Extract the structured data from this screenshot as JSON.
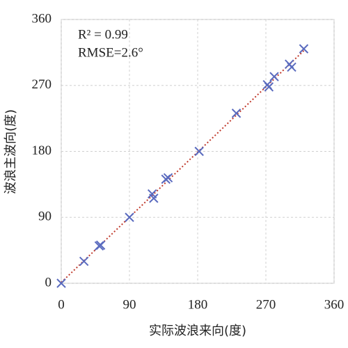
{
  "chart_data": {
    "type": "scatter",
    "x_label": "实际波浪来向(度)",
    "y_label": "波浪主波向(度)",
    "annotations": [
      "R² = 0.99",
      "RMSE=2.6°"
    ],
    "series": [
      {
        "color": "#5a6bbf",
        "x": [
          0,
          30,
          50,
          52,
          90,
          120,
          122,
          138,
          141,
          182,
          231,
          272,
          274,
          281,
          301,
          304,
          320
        ],
        "values": [
          0,
          30,
          51,
          52,
          90,
          122,
          116,
          142,
          144,
          180,
          232,
          271,
          268,
          282,
          299,
          295,
          320
        ]
      }
    ],
    "trendline": true,
    "trendline_color": "#c0392b",
    "xlim": [
      0,
      360
    ],
    "xticks": [
      0,
      90,
      180,
      270,
      360
    ],
    "ylim": [
      0,
      360
    ],
    "yticks": [
      0,
      90,
      180,
      270,
      360
    ],
    "grid": true
  }
}
